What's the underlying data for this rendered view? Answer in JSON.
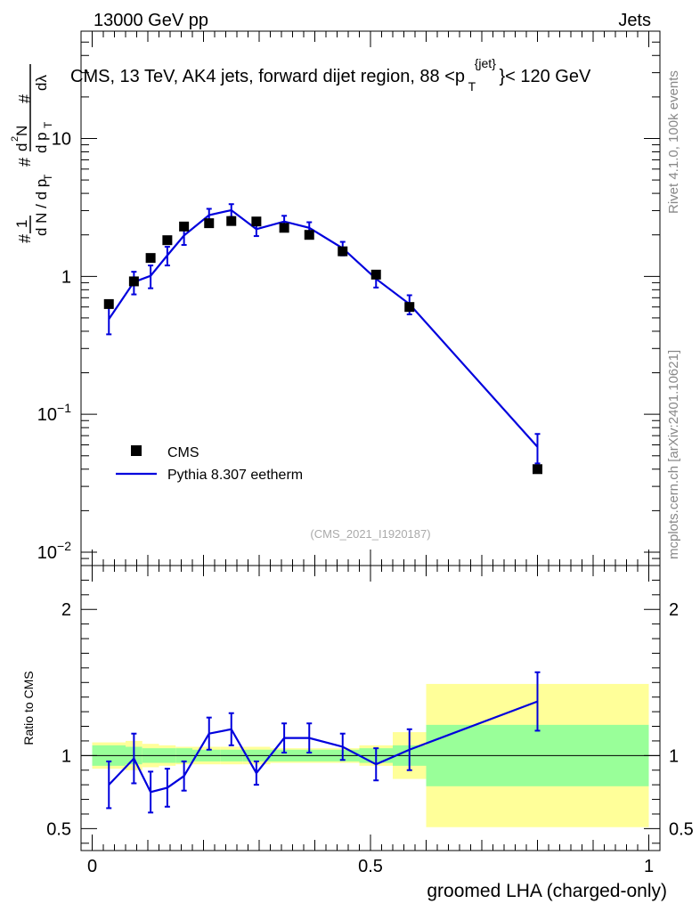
{
  "header": {
    "left": "13000 GeV pp",
    "right": "Jets"
  },
  "title": "CMS, 13 TeV, AK4 jets, forward dijet region, 88 <p",
  "title_sub": "T",
  "title_sup": "{jet}",
  "title_end": "}< 120 GeV",
  "ylabel_main": "1/dN/dp_T # d2N/dpT dlambda",
  "ylabel_ratio": "Ratio to CMS",
  "xlabel": "groomed LHA (charged-only)",
  "watermark": "(CMS_2021_I1920187)",
  "side_top": "Rivet 4.1.0,  100k events",
  "side_bottom": "mcplots.cern.ch [arXiv:2401.10621]",
  "legend": {
    "data": "CMS",
    "mc": "Pythia 8.307 eetherm"
  },
  "colors": {
    "mc": "#0000dd",
    "green": "#99ff99",
    "yellow": "#ffff99"
  },
  "chart_data": {
    "type": "scatter",
    "x_range": [
      -0.02,
      1.02
    ],
    "main_ylim": [
      0.008,
      60
    ],
    "ratio_ylim": [
      0.35,
      2.3
    ],
    "yticks_main": [
      {
        "v": 10,
        "label": "10"
      },
      {
        "v": 1,
        "label": "1"
      },
      {
        "v": 0.1,
        "label": "10",
        "sup": "−1"
      },
      {
        "v": 0.01,
        "label": "10",
        "sup": "−2"
      }
    ],
    "yticks_ratio": [
      {
        "v": 2,
        "label": "2"
      },
      {
        "v": 1,
        "label": "1"
      },
      {
        "v": 0.5,
        "label": "0.5"
      }
    ],
    "xticks": [
      {
        "v": 0,
        "label": "0"
      },
      {
        "v": 0.5,
        "label": "0.5"
      },
      {
        "v": 1,
        "label": "1"
      }
    ],
    "bins": [
      0,
      0.06,
      0.09,
      0.12,
      0.15,
      0.18,
      0.23,
      0.27,
      0.32,
      0.36,
      0.42,
      0.48,
      0.54,
      0.6,
      1.0
    ],
    "cms": {
      "x": [
        0.03,
        0.075,
        0.105,
        0.135,
        0.165,
        0.21,
        0.25,
        0.295,
        0.345,
        0.39,
        0.45,
        0.51,
        0.57,
        0.8
      ],
      "y": [
        0.63,
        0.92,
        1.36,
        1.83,
        2.3,
        2.43,
        2.52,
        2.5,
        2.25,
        2.0,
        1.52,
        1.03,
        0.6,
        0.04
      ]
    },
    "mc": {
      "x": [
        0.03,
        0.075,
        0.105,
        0.135,
        0.165,
        0.21,
        0.25,
        0.295,
        0.345,
        0.39,
        0.45,
        0.51,
        0.57,
        0.8
      ],
      "y": [
        0.49,
        0.91,
        1.01,
        1.42,
        1.98,
        2.78,
        3.02,
        2.2,
        2.5,
        2.25,
        1.6,
        0.96,
        0.63,
        0.058
      ],
      "err": [
        0.11,
        0.17,
        0.19,
        0.22,
        0.29,
        0.31,
        0.32,
        0.24,
        0.25,
        0.22,
        0.18,
        0.13,
        0.1,
        0.014
      ]
    },
    "ratio": {
      "x": [
        0.03,
        0.075,
        0.105,
        0.135,
        0.165,
        0.21,
        0.25,
        0.295,
        0.345,
        0.39,
        0.45,
        0.51,
        0.57,
        0.8
      ],
      "y": [
        0.8,
        0.98,
        0.75,
        0.78,
        0.86,
        1.15,
        1.18,
        0.88,
        1.12,
        1.12,
        1.06,
        0.94,
        1.04,
        1.37
      ],
      "err": [
        0.16,
        0.17,
        0.14,
        0.13,
        0.1,
        0.11,
        0.11,
        0.08,
        0.1,
        0.1,
        0.09,
        0.11,
        0.14,
        0.2
      ]
    },
    "band_green": [
      0.07,
      0.06,
      0.05,
      0.05,
      0.05,
      0.04,
      0.04,
      0.04,
      0.04,
      0.04,
      0.04,
      0.05,
      0.07,
      0.21
    ],
    "band_yellow": [
      0.09,
      0.1,
      0.08,
      0.07,
      0.06,
      0.06,
      0.06,
      0.06,
      0.05,
      0.05,
      0.05,
      0.07,
      0.16,
      0.49
    ]
  }
}
